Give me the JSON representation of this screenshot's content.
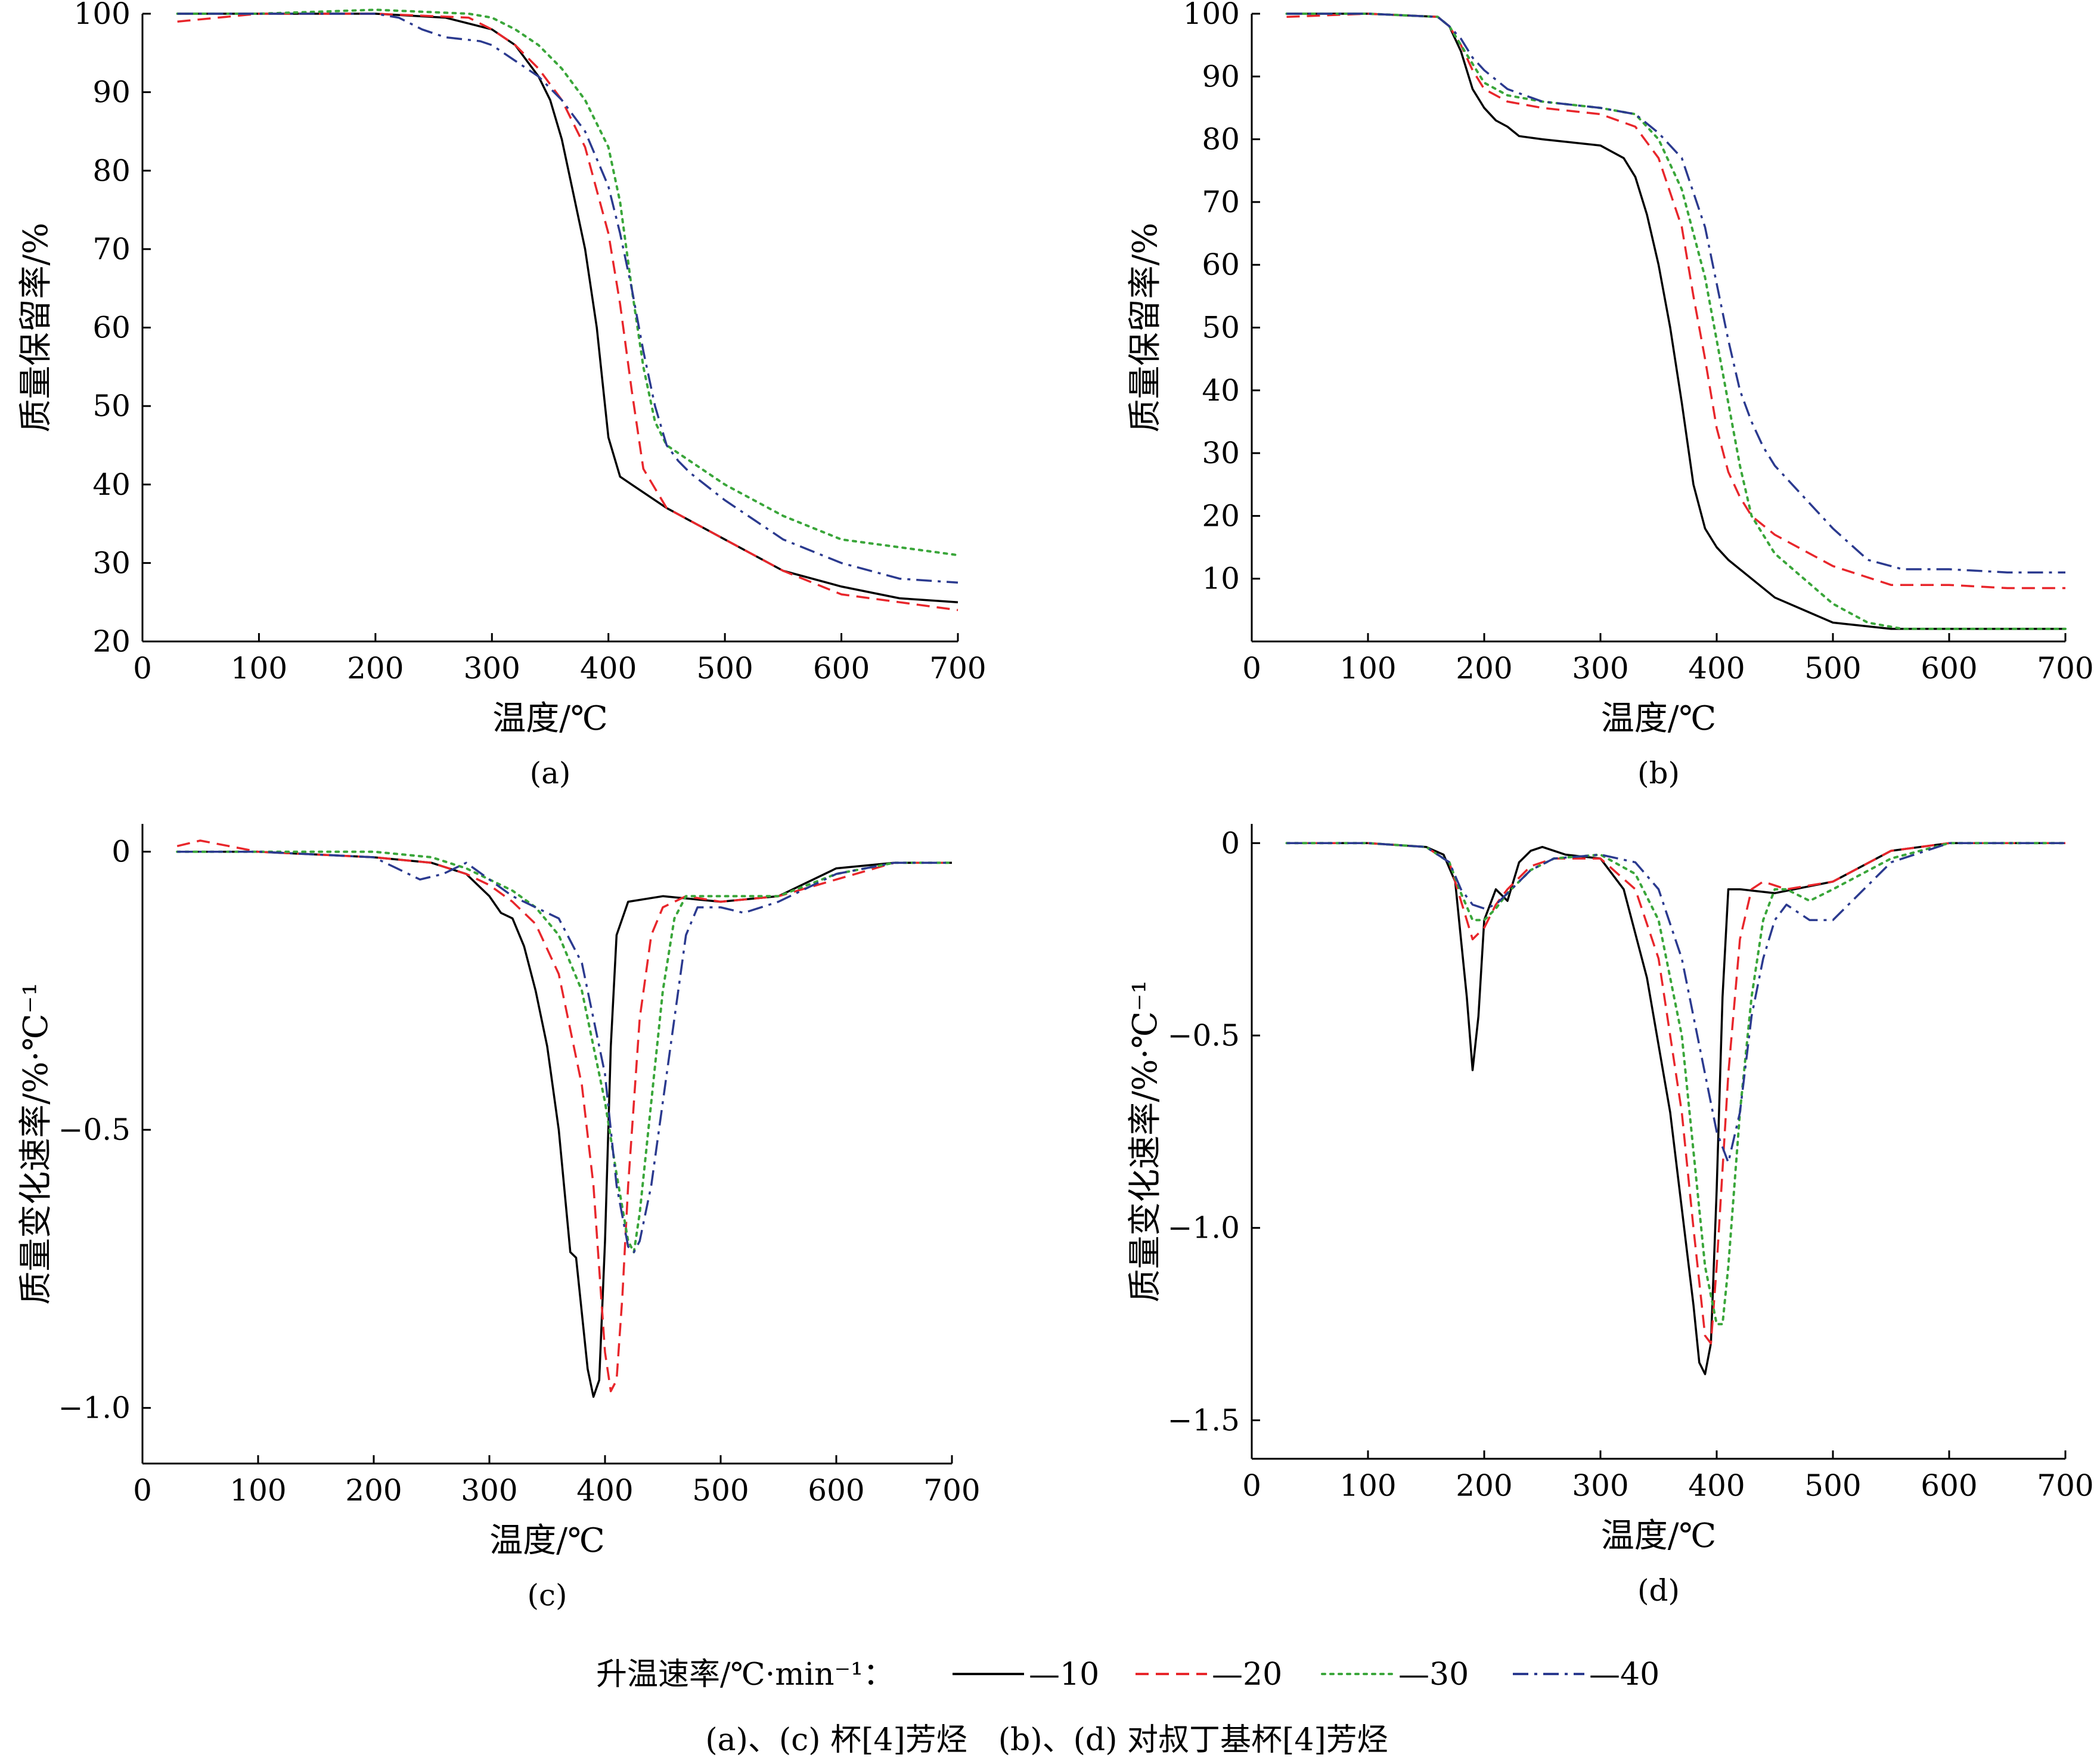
{
  "legend": {
    "title": "升温速率/℃·min⁻¹：",
    "entries": [
      {
        "label": "—10",
        "color": "#000000",
        "dash": "solid"
      },
      {
        "label": "—20",
        "color": "#e8262b",
        "dash": "dashed"
      },
      {
        "label": "—30",
        "color": "#3aa63a",
        "dash": "dotted"
      },
      {
        "label": "—40",
        "color": "#2b3a8f",
        "dash": "dashdot"
      }
    ]
  },
  "caption": "(a)、(c) 杯[4]芳烃　(b)、(d) 对叔丁基杯[4]芳烃",
  "chart_data": [
    {
      "id": "a",
      "type": "line",
      "panel_label": "(a)",
      "xlabel": "温度/℃",
      "ylabel": "质量保留率/%",
      "xlim": [
        0,
        700
      ],
      "ylim": [
        20,
        100
      ],
      "xticks": [
        0,
        100,
        200,
        300,
        400,
        500,
        600,
        700
      ],
      "yticks": [
        20,
        30,
        40,
        50,
        60,
        70,
        80,
        90,
        100
      ],
      "series": [
        {
          "name": "10",
          "x": [
            30,
            100,
            200,
            260,
            300,
            320,
            340,
            350,
            360,
            370,
            380,
            390,
            395,
            400,
            410,
            420,
            450,
            500,
            550,
            600,
            650,
            700
          ],
          "y": [
            100,
            100,
            100,
            99.5,
            98,
            96,
            92,
            89,
            84,
            77,
            70,
            60,
            53,
            46,
            41,
            40,
            37,
            33,
            29,
            27,
            25.5,
            25
          ]
        },
        {
          "name": "20",
          "x": [
            30,
            100,
            200,
            280,
            300,
            320,
            340,
            360,
            380,
            400,
            410,
            420,
            430,
            450,
            500,
            550,
            600,
            650,
            700
          ],
          "y": [
            99,
            100,
            100,
            99.5,
            98,
            96,
            93,
            89,
            83,
            72,
            63,
            52,
            42,
            37,
            33,
            29,
            26,
            25,
            24
          ]
        },
        {
          "name": "30",
          "x": [
            30,
            100,
            200,
            280,
            300,
            320,
            340,
            360,
            380,
            400,
            410,
            420,
            430,
            440,
            450,
            470,
            500,
            550,
            600,
            650,
            700
          ],
          "y": [
            100,
            100,
            100.5,
            100,
            99.5,
            98,
            96,
            93,
            89,
            83,
            76,
            65,
            55,
            48,
            45,
            43,
            40,
            36,
            33,
            32,
            31
          ]
        },
        {
          "name": "40",
          "x": [
            30,
            100,
            200,
            220,
            240,
            260,
            290,
            300,
            320,
            340,
            360,
            380,
            400,
            410,
            420,
            430,
            440,
            450,
            460,
            470,
            500,
            550,
            600,
            650,
            700
          ],
          "y": [
            100,
            100,
            100,
            99.5,
            98,
            97,
            96.5,
            96,
            94,
            92,
            89,
            85,
            78,
            72,
            65,
            57,
            50,
            45,
            43,
            41.5,
            38,
            33,
            30,
            28,
            27.5
          ]
        }
      ]
    },
    {
      "id": "b",
      "type": "line",
      "panel_label": "(b)",
      "xlabel": "温度/℃",
      "ylabel": "质量保留率/%",
      "xlim": [
        0,
        700
      ],
      "ylim": [
        0,
        100
      ],
      "xticks": [
        0,
        100,
        200,
        300,
        400,
        500,
        600,
        700
      ],
      "yticks": [
        10,
        20,
        30,
        40,
        50,
        60,
        70,
        80,
        90,
        100
      ],
      "series": [
        {
          "name": "10",
          "x": [
            30,
            100,
            160,
            170,
            180,
            190,
            200,
            210,
            220,
            230,
            250,
            300,
            320,
            330,
            340,
            350,
            360,
            370,
            380,
            390,
            400,
            410,
            430,
            450,
            500,
            550,
            600,
            650,
            700
          ],
          "y": [
            100,
            100,
            99.5,
            98,
            94,
            88,
            85,
            83,
            82,
            80.5,
            80,
            79,
            77,
            74,
            68,
            60,
            50,
            38,
            25,
            18,
            15,
            13,
            10,
            7,
            3,
            2,
            2,
            2,
            2
          ]
        },
        {
          "name": "20",
          "x": [
            30,
            100,
            160,
            170,
            180,
            190,
            200,
            220,
            250,
            300,
            330,
            350,
            370,
            380,
            390,
            400,
            410,
            420,
            430,
            450,
            500,
            550,
            600,
            650,
            700
          ],
          "y": [
            99.5,
            100,
            99.5,
            98,
            95,
            91,
            88,
            86,
            85,
            84,
            82,
            77,
            66,
            55,
            45,
            34,
            27,
            23,
            20,
            17,
            12,
            9,
            9,
            8.5,
            8.5
          ]
        },
        {
          "name": "30",
          "x": [
            30,
            100,
            160,
            170,
            180,
            190,
            200,
            220,
            250,
            300,
            330,
            350,
            370,
            390,
            400,
            410,
            420,
            430,
            450,
            500,
            530,
            560,
            600,
            650,
            700
          ],
          "y": [
            100,
            100,
            99.5,
            98,
            95,
            92,
            89,
            87,
            86,
            85,
            84,
            80,
            72,
            58,
            48,
            38,
            28,
            20,
            14,
            6,
            3,
            2,
            2,
            2,
            2
          ]
        },
        {
          "name": "40",
          "x": [
            30,
            100,
            160,
            170,
            180,
            190,
            200,
            220,
            250,
            300,
            330,
            350,
            370,
            390,
            400,
            410,
            420,
            430,
            440,
            450,
            470,
            500,
            530,
            560,
            600,
            650,
            700
          ],
          "y": [
            100,
            100,
            99.5,
            98,
            96,
            93,
            91,
            88,
            86,
            85,
            84,
            81,
            77,
            66,
            57,
            48,
            40,
            35,
            31,
            28,
            24,
            18,
            13,
            11.5,
            11.5,
            11,
            11
          ]
        }
      ]
    },
    {
      "id": "c",
      "type": "line",
      "panel_label": "(c)",
      "xlabel": "温度/℃",
      "ylabel": "质量变化速率/%·℃⁻¹",
      "xlim": [
        0,
        700
      ],
      "ylim": [
        -1.1,
        0.05
      ],
      "xticks": [
        0,
        100,
        200,
        300,
        400,
        500,
        600,
        700
      ],
      "yticks": [
        0,
        -0.5,
        -1.0
      ],
      "ytick_labels": [
        "0",
        "−0.5",
        "−1.0"
      ],
      "series": [
        {
          "name": "10",
          "x": [
            30,
            100,
            200,
            250,
            280,
            300,
            310,
            320,
            330,
            340,
            350,
            360,
            370,
            375,
            380,
            385,
            390,
            395,
            400,
            405,
            410,
            420,
            450,
            500,
            550,
            600,
            650,
            700
          ],
          "y": [
            0,
            0,
            -0.01,
            -0.02,
            -0.04,
            -0.08,
            -0.11,
            -0.12,
            -0.17,
            -0.25,
            -0.35,
            -0.5,
            -0.72,
            -0.73,
            -0.83,
            -0.93,
            -0.98,
            -0.95,
            -0.7,
            -0.35,
            -0.15,
            -0.09,
            -0.08,
            -0.09,
            -0.08,
            -0.03,
            -0.02,
            -0.02
          ]
        },
        {
          "name": "20",
          "x": [
            30,
            50,
            100,
            200,
            250,
            280,
            300,
            320,
            340,
            360,
            380,
            390,
            400,
            405,
            410,
            415,
            420,
            430,
            440,
            450,
            470,
            500,
            550,
            600,
            650,
            700
          ],
          "y": [
            0.01,
            0.02,
            0,
            -0.01,
            -0.02,
            -0.04,
            -0.06,
            -0.09,
            -0.13,
            -0.22,
            -0.42,
            -0.6,
            -0.9,
            -0.97,
            -0.95,
            -0.8,
            -0.6,
            -0.3,
            -0.15,
            -0.1,
            -0.08,
            -0.09,
            -0.08,
            -0.05,
            -0.02,
            -0.02
          ]
        },
        {
          "name": "30",
          "x": [
            30,
            100,
            200,
            250,
            280,
            300,
            320,
            340,
            360,
            380,
            400,
            410,
            420,
            425,
            430,
            440,
            450,
            460,
            470,
            500,
            550,
            600,
            650,
            700
          ],
          "y": [
            0,
            0,
            0,
            -0.01,
            -0.03,
            -0.05,
            -0.07,
            -0.1,
            -0.15,
            -0.25,
            -0.45,
            -0.58,
            -0.7,
            -0.72,
            -0.65,
            -0.45,
            -0.25,
            -0.12,
            -0.08,
            -0.08,
            -0.08,
            -0.04,
            -0.02,
            -0.02
          ]
        },
        {
          "name": "40",
          "x": [
            30,
            100,
            200,
            220,
            240,
            260,
            280,
            300,
            320,
            340,
            360,
            380,
            400,
            410,
            420,
            425,
            430,
            440,
            450,
            460,
            470,
            480,
            500,
            520,
            550,
            600,
            650,
            700
          ],
          "y": [
            0,
            0,
            -0.01,
            -0.03,
            -0.05,
            -0.04,
            -0.02,
            -0.05,
            -0.08,
            -0.1,
            -0.12,
            -0.2,
            -0.4,
            -0.6,
            -0.71,
            -0.72,
            -0.7,
            -0.6,
            -0.45,
            -0.3,
            -0.15,
            -0.1,
            -0.1,
            -0.11,
            -0.09,
            -0.04,
            -0.02,
            -0.02
          ]
        }
      ]
    },
    {
      "id": "d",
      "type": "line",
      "panel_label": "(d)",
      "xlabel": "温度/℃",
      "ylabel": "质量变化速率/%·℃⁻¹",
      "xlim": [
        0,
        700
      ],
      "ylim": [
        -1.6,
        0.05
      ],
      "xticks": [
        0,
        100,
        200,
        300,
        400,
        500,
        600,
        700
      ],
      "yticks": [
        0,
        -0.5,
        -1.0,
        -1.5
      ],
      "ytick_labels": [
        "0",
        "−0.5",
        "−1.0",
        "−1.5"
      ],
      "series": [
        {
          "name": "10",
          "x": [
            30,
            100,
            150,
            165,
            175,
            180,
            185,
            190,
            195,
            200,
            210,
            220,
            230,
            240,
            250,
            270,
            300,
            320,
            340,
            360,
            370,
            380,
            385,
            390,
            395,
            400,
            405,
            410,
            420,
            450,
            500,
            550,
            600,
            650,
            700
          ],
          "y": [
            0,
            0,
            -0.01,
            -0.03,
            -0.1,
            -0.25,
            -0.4,
            -0.59,
            -0.45,
            -0.2,
            -0.12,
            -0.15,
            -0.05,
            -0.02,
            -0.01,
            -0.03,
            -0.04,
            -0.12,
            -0.35,
            -0.7,
            -0.95,
            -1.2,
            -1.35,
            -1.38,
            -1.3,
            -0.9,
            -0.4,
            -0.12,
            -0.12,
            -0.13,
            -0.1,
            -0.02,
            0,
            0,
            0
          ]
        },
        {
          "name": "20",
          "x": [
            30,
            100,
            150,
            170,
            180,
            190,
            200,
            210,
            220,
            240,
            260,
            300,
            330,
            350,
            370,
            380,
            390,
            395,
            400,
            410,
            420,
            430,
            440,
            460,
            500,
            550,
            600,
            650,
            700
          ],
          "y": [
            0,
            0,
            -0.01,
            -0.05,
            -0.15,
            -0.25,
            -0.22,
            -0.16,
            -0.12,
            -0.06,
            -0.04,
            -0.04,
            -0.12,
            -0.3,
            -0.7,
            -1.0,
            -1.28,
            -1.3,
            -1.1,
            -0.6,
            -0.25,
            -0.12,
            -0.1,
            -0.12,
            -0.1,
            -0.02,
            0,
            0,
            0
          ]
        },
        {
          "name": "30",
          "x": [
            30,
            100,
            150,
            170,
            180,
            190,
            200,
            210,
            220,
            240,
            260,
            300,
            330,
            350,
            370,
            380,
            390,
            400,
            405,
            410,
            420,
            430,
            440,
            450,
            460,
            480,
            500,
            550,
            600,
            650,
            700
          ],
          "y": [
            0,
            0,
            -0.01,
            -0.05,
            -0.13,
            -0.2,
            -0.2,
            -0.17,
            -0.13,
            -0.07,
            -0.04,
            -0.03,
            -0.08,
            -0.2,
            -0.5,
            -0.8,
            -1.1,
            -1.25,
            -1.25,
            -1.1,
            -0.7,
            -0.4,
            -0.2,
            -0.12,
            -0.12,
            -0.15,
            -0.12,
            -0.04,
            0,
            0,
            0
          ]
        },
        {
          "name": "40",
          "x": [
            30,
            100,
            150,
            170,
            180,
            190,
            200,
            210,
            220,
            240,
            260,
            300,
            330,
            350,
            370,
            390,
            400,
            410,
            420,
            430,
            440,
            450,
            460,
            480,
            500,
            520,
            550,
            600,
            650,
            700
          ],
          "y": [
            0,
            0,
            -0.01,
            -0.05,
            -0.12,
            -0.16,
            -0.17,
            -0.16,
            -0.13,
            -0.07,
            -0.04,
            -0.03,
            -0.05,
            -0.12,
            -0.3,
            -0.6,
            -0.75,
            -0.83,
            -0.7,
            -0.45,
            -0.3,
            -0.2,
            -0.16,
            -0.2,
            -0.2,
            -0.14,
            -0.05,
            0,
            0,
            0
          ]
        }
      ]
    }
  ]
}
